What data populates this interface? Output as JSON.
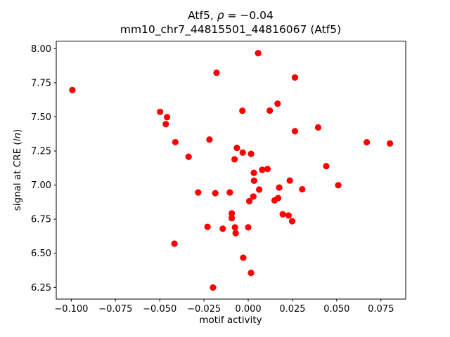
{
  "figure": {
    "title_line1": {
      "prefix": "Atf5, ",
      "rho": "ρ",
      "suffix": " = −0.04"
    },
    "title_line2": "mm10_chr7_44815501_44816067 (Atf5)",
    "xlabel": "motif activity",
    "ylabel": {
      "prefix": "signal at CRE (",
      "italic": "ln",
      "suffix": ")"
    }
  },
  "chart_data": {
    "type": "scatter",
    "title": "Atf5, ρ = −0.04",
    "subtitle": "mm10_chr7_44815501_44816067 (Atf5)",
    "xlabel": "motif activity",
    "ylabel": "signal at CRE (ln)",
    "legend": "none",
    "grid": false,
    "marker_color": "#ff0000",
    "marker_radius": 4.6,
    "xlim": [
      -0.1085,
      0.089
    ],
    "ylim": [
      6.164,
      8.056
    ],
    "x_ticks": {
      "values": [
        -0.1,
        -0.075,
        -0.05,
        -0.025,
        0.0,
        0.025,
        0.05,
        0.075
      ],
      "labels": [
        "−0.100",
        "−0.075",
        "−0.050",
        "−0.025",
        "0.000",
        "0.025",
        "0.050",
        "0.075"
      ]
    },
    "y_ticks": {
      "values": [
        6.25,
        6.5,
        6.75,
        7.0,
        7.25,
        7.5,
        7.75,
        8.0
      ],
      "labels": [
        "6.25",
        "6.50",
        "6.75",
        "7.00",
        "7.25",
        "7.50",
        "7.75",
        "8.00"
      ]
    },
    "points": [
      [
        -0.0994,
        7.697
      ],
      [
        -0.0498,
        7.537
      ],
      [
        -0.0459,
        7.498
      ],
      [
        -0.0466,
        7.447
      ],
      [
        -0.0412,
        7.315
      ],
      [
        0.0056,
        7.967
      ],
      [
        -0.0179,
        7.824
      ],
      [
        0.0264,
        7.789
      ],
      [
        0.0166,
        7.597
      ],
      [
        0.0122,
        7.546
      ],
      [
        -0.0033,
        7.545
      ],
      [
        0.0264,
        7.395
      ],
      [
        -0.0219,
        7.334
      ],
      [
        -0.0337,
        7.208
      ],
      [
        -0.0064,
        7.273
      ],
      [
        -0.0031,
        7.238
      ],
      [
        0.0016,
        7.229
      ],
      [
        -0.0077,
        7.189
      ],
      [
        0.0079,
        7.112
      ],
      [
        0.0109,
        7.118
      ],
      [
        0.0032,
        7.09
      ],
      [
        0.0033,
        7.032
      ],
      [
        0.0395,
        7.423
      ],
      [
        0.067,
        7.314
      ],
      [
        0.0801,
        7.305
      ],
      [
        0.0441,
        7.139
      ],
      [
        -0.0417,
        6.571
      ],
      [
        -0.0283,
        6.946
      ],
      [
        -0.0186,
        6.941
      ],
      [
        -0.0104,
        6.946
      ],
      [
        0.0029,
        6.916
      ],
      [
        0.0006,
        6.882
      ],
      [
        -0.0093,
        6.793
      ],
      [
        -0.0093,
        6.757
      ],
      [
        -0.023,
        6.694
      ],
      [
        -0.0144,
        6.68
      ],
      [
        -0.0075,
        6.69
      ],
      [
        0.0,
        6.69
      ],
      [
        -0.0071,
        6.648
      ],
      [
        0.0235,
        7.033
      ],
      [
        0.0175,
        6.982
      ],
      [
        0.0305,
        6.969
      ],
      [
        0.0149,
        6.888
      ],
      [
        0.0169,
        6.905
      ],
      [
        0.0195,
        6.786
      ],
      [
        0.0228,
        6.777
      ],
      [
        0.0248,
        6.735
      ],
      [
        0.0509,
        6.999
      ],
      [
        -0.0028,
        6.468
      ],
      [
        0.0016,
        6.356
      ],
      [
        -0.0199,
        6.249
      ],
      [
        0.0062,
        6.967
      ]
    ]
  }
}
